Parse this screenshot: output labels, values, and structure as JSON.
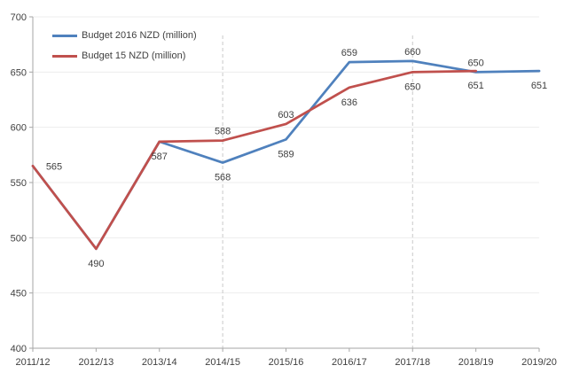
{
  "chart_data": {
    "type": "line",
    "title": "",
    "categories": [
      "2011/12",
      "2012/13",
      "2013/14",
      "2014/15",
      "2015/16",
      "2016/17",
      "2017/18",
      "2018/19",
      "2019/20"
    ],
    "series": [
      {
        "name": "Budget 2016 NZD (million)",
        "color": "#4F81BD",
        "values": [
          565,
          490,
          587,
          568,
          589,
          659,
          660,
          650,
          651
        ],
        "label_pos": [
          null,
          null,
          null,
          "below",
          "below",
          "above",
          "above",
          "above",
          "below"
        ]
      },
      {
        "name": "Budget 15 NZD (million)",
        "color": "#C0504D",
        "values": [
          565,
          490,
          587,
          588,
          603,
          636,
          650,
          651,
          null
        ],
        "label_pos": [
          "right",
          "below",
          "below",
          "above",
          "above",
          "below",
          "below",
          "below",
          null
        ]
      }
    ],
    "ylim": [
      400,
      700
    ],
    "yticks": [
      400,
      450,
      500,
      550,
      600,
      650,
      700
    ],
    "grid": "horizontal",
    "legend_position": "top-left",
    "dashed_vlines": [
      "2014/15",
      "2017/18"
    ],
    "colors": {
      "axis": "#A6A6A6",
      "gridline": "#EDEDED",
      "dashed_guide": "#C9C9C9",
      "text": "#404040"
    }
  }
}
